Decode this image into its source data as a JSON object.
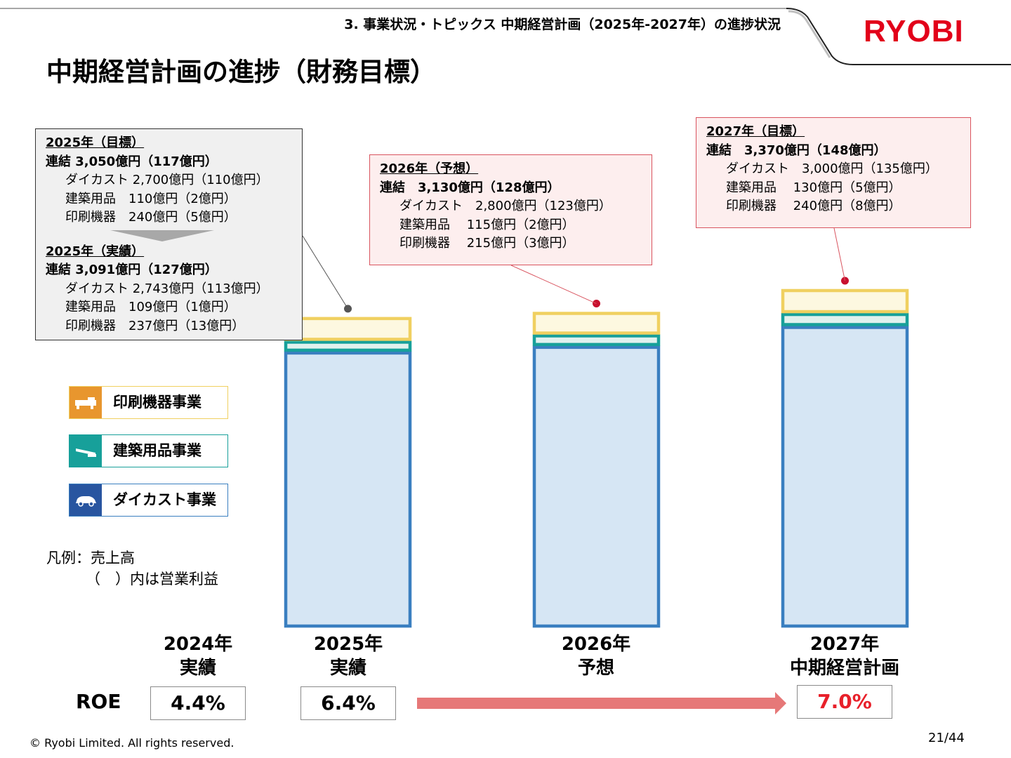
{
  "header": {
    "section_title": "3. 事業状況・トピックス 中期経営計画（2025年-2027年）の進捗状況",
    "logo_text": "RYOBI",
    "page_title": "中期経営計画の進捗（財務目標）"
  },
  "callouts": {
    "y2025": {
      "target_heading": "2025年（目標）",
      "target_total": "連結 3,050億円（117億円）",
      "target_lines": [
        "ダイカスト 2,700億円（110億円）",
        "建築用品　110億円（2億円）",
        "印刷機器　240億円（5億円）"
      ],
      "actual_heading": "2025年（実績）",
      "actual_total": "連結 3,091億円（127億円）",
      "actual_lines": [
        "ダイカスト 2,743億円（113億円）",
        "建築用品　109億円（1億円）",
        "印刷機器　237億円（13億円）"
      ]
    },
    "y2026": {
      "heading": "2026年（予想）",
      "total": "連結　3,130億円（128億円）",
      "lines": [
        "ダイカスト　2,800億円（123億円）",
        "建築用品　 115億円（2億円）",
        "印刷機器　 215億円（3億円）"
      ]
    },
    "y2027": {
      "heading": "2027年（目標）",
      "total": "連結　3,370億円（148億円）",
      "lines": [
        "ダイカスト　3,000億円（135億円）",
        "建築用品　 130億円（5億円）",
        "印刷機器　 240億円（8億円）"
      ]
    }
  },
  "legend": {
    "items": [
      {
        "label": "印刷機器事業",
        "icon": "printing-press-icon",
        "color": "#e8962e",
        "border": "#f0d060"
      },
      {
        "label": "建築用品事業",
        "icon": "door-closer-icon",
        "color": "#17a09a",
        "border": "#17a09a"
      },
      {
        "label": "ダイカスト事業",
        "icon": "car-icon",
        "color": "#2855a0",
        "border": "#3a7fc0"
      }
    ],
    "note_line1": "凡例：売上高",
    "note_line2": "（　）内は営業利益"
  },
  "chart_data": {
    "type": "bar",
    "stacked": true,
    "categories": [
      "2024年 実績",
      "2025年 実績",
      "2026年 予想",
      "2027年 中期経営計画"
    ],
    "category_lines": [
      [
        "2024年",
        "実績"
      ],
      [
        "2025年",
        "実績"
      ],
      [
        "2026年",
        "予想"
      ],
      [
        "2027年",
        "中期経営計画"
      ]
    ],
    "series": [
      {
        "name": "ダイカスト事業",
        "values": [
          null,
          2743,
          2800,
          3000
        ],
        "fill": "#d6e6f4",
        "stroke": "#3a7fc0"
      },
      {
        "name": "建築用品事業",
        "values": [
          null,
          109,
          115,
          130
        ],
        "fill": "#e1f1ee",
        "stroke": "#17a09a"
      },
      {
        "name": "印刷機器事業",
        "values": [
          null,
          237,
          215,
          240
        ],
        "fill": "#fdf8e0",
        "stroke": "#f0d060"
      }
    ],
    "totals": [
      null,
      3091,
      3130,
      3370
    ],
    "ylim": [
      0,
      3370
    ],
    "roe_label": "ROE",
    "roe_values": [
      "4.4%",
      "6.4%",
      null,
      "7.0%"
    ],
    "roe_highlight_color": "#e8202a",
    "arrow_color": "#e67878"
  },
  "footer": {
    "copyright": "© Ryobi Limited. All rights reserved.",
    "page": "21/44"
  }
}
